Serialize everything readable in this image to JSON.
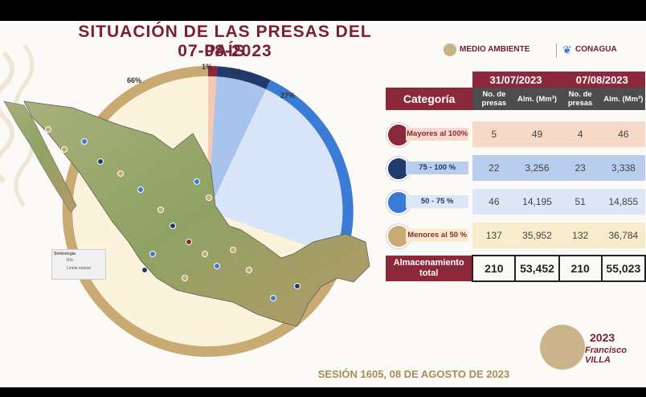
{
  "title": "SITUACIÓN DE LAS PRESAS DEL PAÍS",
  "date": "07-08-2023",
  "logos": {
    "medio_ambiente": "MEDIO AMBIENTE",
    "conagua": "CONAGUA"
  },
  "legend": {
    "title": "Simbología",
    "items": [
      "Río",
      "Límite estatal"
    ]
  },
  "donut": {
    "percent_labels": [
      "1%",
      "6%",
      "27%",
      "66%"
    ],
    "colors": [
      "#8b2839",
      "#1f3a6b",
      "#3a7bd5",
      "#c8aa72"
    ],
    "light_colors": [
      "#f4c9b3",
      "#a9c4ec",
      "#d9e5f8",
      "#fbf3dc"
    ]
  },
  "table": {
    "category_header": "Categoría",
    "dates": [
      "31/07/2023",
      "07/08/2023"
    ],
    "sub_headers": [
      "No. de presas",
      "Alm. (Mm³)"
    ],
    "rows": [
      {
        "label": "Mayores al 100%",
        "v": [
          "5",
          "49",
          "4",
          "46"
        ],
        "bg": "#f7d9c7",
        "icon": "#8b2839"
      },
      {
        "label": "75 - 100 %",
        "v": [
          "22",
          "3,256",
          "23",
          "3,338"
        ],
        "bg": "#b9cdee",
        "icon": "#1f3a6b"
      },
      {
        "label": "50 - 75 %",
        "v": [
          "46",
          "14,195",
          "51",
          "14,855"
        ],
        "bg": "#dde7f7",
        "icon": "#3a7bd5"
      },
      {
        "label": "Menores al 50 %",
        "v": [
          "137",
          "35,952",
          "132",
          "36,784"
        ],
        "bg": "#f8eccd",
        "icon": "#c8aa72"
      }
    ],
    "total_label": "Almacenamiento total",
    "totals": [
      "210",
      "53,452",
      "210",
      "55,023"
    ]
  },
  "footer": "SESIÓN 1605, 08 DE AGOSTO DE 2023",
  "badge": {
    "year": "2023",
    "name": "Francisco VILLA"
  }
}
